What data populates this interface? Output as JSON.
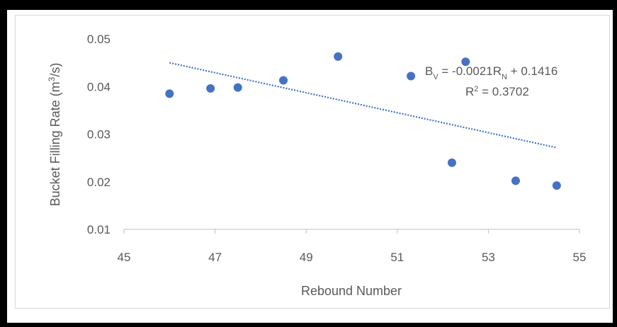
{
  "chart_data": {
    "type": "scatter",
    "xlabel": "Rebound Number",
    "ylabel": "Bucket Filling Rate (m",
    "ylabel_sup": "3",
    "ylabel_tail": "/s)",
    "xlim": [
      45,
      55
    ],
    "ylim": [
      0.01,
      0.05
    ],
    "x_ticks": [
      "45",
      "47",
      "49",
      "51",
      "53",
      "55"
    ],
    "y_ticks": [
      "0.01",
      "0.02",
      "0.03",
      "0.04",
      "0.05"
    ],
    "x_tick_values": [
      45,
      47,
      49,
      51,
      53,
      55
    ],
    "y_tick_values": [
      0.01,
      0.02,
      0.03,
      0.04,
      0.05
    ],
    "grid": false,
    "points": [
      {
        "x": 46.0,
        "y": 0.0385
      },
      {
        "x": 46.9,
        "y": 0.0396
      },
      {
        "x": 47.5,
        "y": 0.0398
      },
      {
        "x": 48.5,
        "y": 0.0413
      },
      {
        "x": 49.7,
        "y": 0.0463
      },
      {
        "x": 51.3,
        "y": 0.0422
      },
      {
        "x": 52.5,
        "y": 0.0452
      },
      {
        "x": 52.2,
        "y": 0.024
      },
      {
        "x": 53.6,
        "y": 0.0202
      },
      {
        "x": 54.5,
        "y": 0.0192
      }
    ],
    "trendline": {
      "type": "linear",
      "x_start": 46.0,
      "x_end": 54.5,
      "equation_prefix": "B",
      "equation_prefix_sub": "V",
      "equation_mid": " = -0.0021R",
      "equation_mid_sub": "N",
      "equation_tail": " + 0.1416",
      "r2_prefix": "R",
      "r2_sup": "2",
      "r2_tail": " = 0.3702"
    },
    "colors": {
      "marker": "#4472c4",
      "trendline": "#4472c4",
      "axis": "#bfbfbf",
      "text": "#595959"
    }
  }
}
